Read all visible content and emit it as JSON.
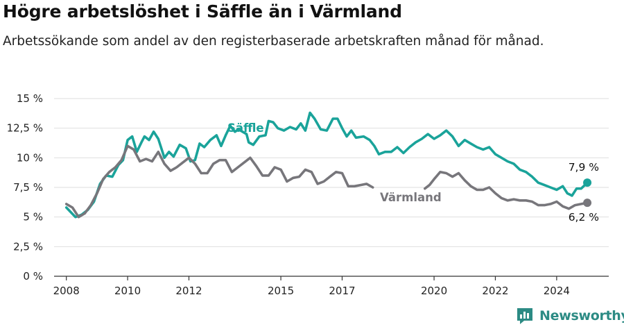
{
  "title": "Högre arbetslöshet i Säffle än i Värmland",
  "subtitle": "Arbetssökande som andel av den registerbaserade arbetskraften månad för månad.",
  "brand": {
    "name": "Newsworthy",
    "logo_icon": "newsworthy-logo-icon"
  },
  "colors": {
    "saffle": "#1aa39a",
    "varmland": "#77767b",
    "grid": "#dedede",
    "axis": "#333333",
    "brand": "#2c8b84"
  },
  "chart_data": {
    "type": "line",
    "title": "Högre arbetslöshet i Säffle än i Värmland",
    "ylim": [
      0,
      15
    ],
    "y_ticks": [
      0,
      2.5,
      5,
      7.5,
      10,
      12.5,
      15
    ],
    "y_tick_labels": [
      "0 %",
      "2,5 %",
      "5 %",
      "7,5 %",
      "10 %",
      "12,5 %",
      "15 %"
    ],
    "x_ticks": [
      2008,
      2010,
      2012,
      2015,
      2017,
      2020,
      2022,
      2024
    ],
    "x_tick_labels": [
      "2008",
      "2010",
      "2012",
      "2015",
      "2017",
      "2020",
      "2022",
      "2024"
    ],
    "grid": "horizontal",
    "legend": "inline labels",
    "series": [
      {
        "name": "Säffle",
        "color": "#1aa39a",
        "end_label": "7,9 %",
        "points": [
          [
            2008.0,
            5.8
          ],
          [
            2008.3,
            5.0
          ],
          [
            2008.5,
            5.2
          ],
          [
            2008.7,
            5.6
          ],
          [
            2008.9,
            6.3
          ],
          [
            2009.1,
            7.8
          ],
          [
            2009.3,
            8.5
          ],
          [
            2009.5,
            8.4
          ],
          [
            2009.7,
            9.4
          ],
          [
            2009.85,
            9.8
          ],
          [
            2010.0,
            11.5
          ],
          [
            2010.15,
            11.8
          ],
          [
            2010.3,
            10.5
          ],
          [
            2010.45,
            11.3
          ],
          [
            2010.55,
            11.8
          ],
          [
            2010.7,
            11.5
          ],
          [
            2010.85,
            12.2
          ],
          [
            2011.0,
            11.6
          ],
          [
            2011.2,
            10.0
          ],
          [
            2011.35,
            10.5
          ],
          [
            2011.5,
            10.1
          ],
          [
            2011.7,
            11.1
          ],
          [
            2011.9,
            10.8
          ],
          [
            2012.05,
            9.7
          ],
          [
            2012.2,
            9.8
          ],
          [
            2012.35,
            11.2
          ],
          [
            2012.5,
            10.9
          ],
          [
            2012.7,
            11.5
          ],
          [
            2012.9,
            11.9
          ],
          [
            2013.05,
            11.0
          ],
          [
            2013.2,
            11.9
          ],
          [
            2013.35,
            12.7
          ],
          [
            2013.5,
            12.2
          ],
          [
            2013.62,
            12.4
          ],
          [
            2013.88,
            12.0
          ],
          [
            2013.95,
            11.3
          ],
          [
            2014.1,
            11.1
          ],
          [
            2014.3,
            11.8
          ],
          [
            2014.5,
            11.9
          ],
          [
            2014.6,
            13.1
          ],
          [
            2014.75,
            13.0
          ],
          [
            2014.9,
            12.5
          ],
          [
            2015.1,
            12.3
          ],
          [
            2015.3,
            12.6
          ],
          [
            2015.5,
            12.4
          ],
          [
            2015.65,
            12.9
          ],
          [
            2015.8,
            12.3
          ],
          [
            2015.95,
            13.8
          ],
          [
            2016.1,
            13.3
          ],
          [
            2016.3,
            12.4
          ],
          [
            2016.5,
            12.3
          ],
          [
            2016.7,
            13.3
          ],
          [
            2016.85,
            13.3
          ],
          [
            2017.0,
            12.5
          ],
          [
            2017.15,
            11.8
          ],
          [
            2017.3,
            12.3
          ],
          [
            2017.45,
            11.7
          ],
          [
            2017.7,
            11.8
          ],
          [
            2017.9,
            11.5
          ],
          [
            2018.05,
            11.0
          ],
          [
            2018.2,
            10.3
          ],
          [
            2018.4,
            10.5
          ],
          [
            2018.6,
            10.5
          ],
          [
            2018.8,
            10.9
          ],
          [
            2019.0,
            10.4
          ],
          [
            2019.2,
            10.9
          ],
          [
            2019.4,
            11.3
          ],
          [
            2019.6,
            11.6
          ],
          [
            2019.8,
            12.0
          ],
          [
            2020.0,
            11.6
          ],
          [
            2020.2,
            11.9
          ],
          [
            2020.4,
            12.3
          ],
          [
            2020.6,
            11.8
          ],
          [
            2020.8,
            11.0
          ],
          [
            2021.0,
            11.5
          ],
          [
            2021.2,
            11.2
          ],
          [
            2021.4,
            10.9
          ],
          [
            2021.6,
            10.7
          ],
          [
            2021.8,
            10.9
          ],
          [
            2022.0,
            10.3
          ],
          [
            2022.2,
            10.0
          ],
          [
            2022.4,
            9.7
          ],
          [
            2022.6,
            9.5
          ],
          [
            2022.8,
            9.0
          ],
          [
            2023.0,
            8.8
          ],
          [
            2023.2,
            8.4
          ],
          [
            2023.4,
            7.9
          ],
          [
            2023.6,
            7.7
          ],
          [
            2023.8,
            7.5
          ],
          [
            2024.0,
            7.3
          ],
          [
            2024.2,
            7.6
          ],
          [
            2024.35,
            7.0
          ],
          [
            2024.5,
            6.8
          ],
          [
            2024.65,
            7.4
          ],
          [
            2024.8,
            7.4
          ],
          [
            2025.0,
            7.9
          ]
        ]
      },
      {
        "name": "Värmland",
        "color": "#77767b",
        "end_label": "6,2 %",
        "points": [
          [
            2008.0,
            6.1
          ],
          [
            2008.2,
            5.8
          ],
          [
            2008.4,
            5.0
          ],
          [
            2008.6,
            5.3
          ],
          [
            2008.8,
            6.0
          ],
          [
            2009.0,
            7.0
          ],
          [
            2009.2,
            8.2
          ],
          [
            2009.4,
            8.8
          ],
          [
            2009.6,
            9.2
          ],
          [
            2009.8,
            9.8
          ],
          [
            2010.0,
            11.0
          ],
          [
            2010.2,
            10.7
          ],
          [
            2010.4,
            9.7
          ],
          [
            2010.6,
            9.9
          ],
          [
            2010.8,
            9.7
          ],
          [
            2011.0,
            10.5
          ],
          [
            2011.2,
            9.5
          ],
          [
            2011.4,
            8.9
          ],
          [
            2011.6,
            9.2
          ],
          [
            2011.8,
            9.6
          ],
          [
            2012.0,
            10.0
          ],
          [
            2012.2,
            9.5
          ],
          [
            2012.4,
            8.7
          ],
          [
            2012.6,
            8.7
          ],
          [
            2012.8,
            9.5
          ],
          [
            2013.0,
            9.8
          ],
          [
            2013.2,
            9.8
          ],
          [
            2013.4,
            8.8
          ],
          [
            2013.6,
            9.2
          ],
          [
            2013.8,
            9.6
          ],
          [
            2014.0,
            10.0
          ],
          [
            2014.2,
            9.3
          ],
          [
            2014.4,
            8.5
          ],
          [
            2014.6,
            8.5
          ],
          [
            2014.8,
            9.2
          ],
          [
            2015.0,
            9.0
          ],
          [
            2015.2,
            8.0
          ],
          [
            2015.4,
            8.3
          ],
          [
            2015.6,
            8.4
          ],
          [
            2015.8,
            9.0
          ],
          [
            2016.0,
            8.8
          ],
          [
            2016.2,
            7.8
          ],
          [
            2016.4,
            8.0
          ],
          [
            2016.6,
            8.4
          ],
          [
            2016.8,
            8.8
          ],
          [
            2017.0,
            8.7
          ],
          [
            2017.2,
            7.6
          ],
          [
            2017.4,
            7.6
          ],
          [
            2017.6,
            7.7
          ],
          [
            2017.8,
            7.8
          ],
          [
            2018.0,
            7.5
          ],
          [
            2019.7,
            7.4
          ],
          [
            2019.85,
            7.7
          ],
          [
            2020.0,
            8.2
          ],
          [
            2020.2,
            8.8
          ],
          [
            2020.4,
            8.7
          ],
          [
            2020.6,
            8.4
          ],
          [
            2020.8,
            8.7
          ],
          [
            2021.0,
            8.1
          ],
          [
            2021.2,
            7.6
          ],
          [
            2021.4,
            7.3
          ],
          [
            2021.6,
            7.3
          ],
          [
            2021.8,
            7.5
          ],
          [
            2022.0,
            7.0
          ],
          [
            2022.2,
            6.6
          ],
          [
            2022.4,
            6.4
          ],
          [
            2022.6,
            6.5
          ],
          [
            2022.8,
            6.4
          ],
          [
            2023.0,
            6.4
          ],
          [
            2023.2,
            6.3
          ],
          [
            2023.4,
            6.0
          ],
          [
            2023.6,
            6.0
          ],
          [
            2023.8,
            6.1
          ],
          [
            2024.0,
            6.3
          ],
          [
            2024.2,
            5.9
          ],
          [
            2024.4,
            5.7
          ],
          [
            2024.6,
            6.0
          ],
          [
            2024.8,
            6.1
          ],
          [
            2025.0,
            6.2
          ]
        ]
      }
    ],
    "annotations": [
      {
        "text": "Säffle",
        "series": "Säffle"
      },
      {
        "text": "Värmland",
        "series": "Värmland"
      },
      {
        "text": "7,9 %",
        "series": "Säffle"
      },
      {
        "text": "6,2 %",
        "series": "Värmland"
      }
    ]
  }
}
